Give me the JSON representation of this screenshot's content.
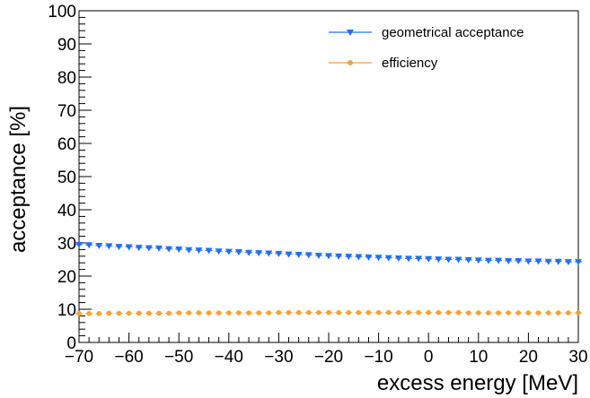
{
  "chart_data": {
    "type": "scatter",
    "xlabel": "excess energy [MeV]",
    "ylabel": "acceptance [%]",
    "xlim": [
      -70,
      30
    ],
    "ylim": [
      0,
      100
    ],
    "x_ticks": [
      -70,
      -60,
      -50,
      -40,
      -30,
      -20,
      -10,
      0,
      10,
      20,
      30
    ],
    "y_ticks": [
      0,
      10,
      20,
      30,
      40,
      50,
      60,
      70,
      80,
      90,
      100
    ],
    "x_tick_labels": [
      "−70",
      "−60",
      "−50",
      "−40",
      "−30",
      "−20",
      "−10",
      "0",
      "10",
      "20",
      "30"
    ],
    "y_tick_labels": [
      "0",
      "10",
      "20",
      "30",
      "40",
      "50",
      "60",
      "70",
      "80",
      "90",
      "100"
    ],
    "grid": false,
    "legend_position": "top-right",
    "series": [
      {
        "name": "geometrical acceptance",
        "marker": "triangle-down",
        "color": "#1f6fff",
        "x": [
          -70,
          -68,
          -66,
          -64,
          -62,
          -60,
          -58,
          -56,
          -54,
          -52,
          -50,
          -48,
          -46,
          -44,
          -42,
          -40,
          -38,
          -36,
          -34,
          -32,
          -30,
          -28,
          -26,
          -24,
          -22,
          -20,
          -18,
          -16,
          -14,
          -12,
          -10,
          -8,
          -6,
          -4,
          -2,
          0,
          2,
          4,
          6,
          8,
          10,
          12,
          14,
          16,
          18,
          20,
          22,
          24,
          26,
          28,
          30
        ],
        "y": [
          29.5,
          29.4,
          29.2,
          29.1,
          28.9,
          28.8,
          28.6,
          28.5,
          28.4,
          28.2,
          28.1,
          27.9,
          27.8,
          27.7,
          27.5,
          27.4,
          27.3,
          27.1,
          27.0,
          26.9,
          26.8,
          26.6,
          26.5,
          26.4,
          26.2,
          26.1,
          26.0,
          25.9,
          25.8,
          25.7,
          25.6,
          25.5,
          25.4,
          25.3,
          25.3,
          25.2,
          25.1,
          25.0,
          25.0,
          24.9,
          24.8,
          24.7,
          24.7,
          24.6,
          24.6,
          24.5,
          24.5,
          24.4,
          24.4,
          24.3,
          24.3
        ]
      },
      {
        "name": "efficiency",
        "marker": "circle",
        "color": "#f5a23c",
        "x": [
          -70,
          -68,
          -66,
          -64,
          -62,
          -60,
          -58,
          -56,
          -54,
          -52,
          -50,
          -48,
          -46,
          -44,
          -42,
          -40,
          -38,
          -36,
          -34,
          -32,
          -30,
          -28,
          -26,
          -24,
          -22,
          -20,
          -18,
          -16,
          -14,
          -12,
          -10,
          -8,
          -6,
          -4,
          -2,
          0,
          2,
          4,
          6,
          8,
          10,
          12,
          14,
          16,
          18,
          20,
          22,
          24,
          26,
          28,
          30
        ],
        "y": [
          8.7,
          8.7,
          8.7,
          8.8,
          8.8,
          8.8,
          8.8,
          8.8,
          8.8,
          8.8,
          8.9,
          8.9,
          8.9,
          8.9,
          8.9,
          8.9,
          8.9,
          8.9,
          8.9,
          8.9,
          9.0,
          9.0,
          9.0,
          9.0,
          9.0,
          9.0,
          9.0,
          9.0,
          9.0,
          9.0,
          9.0,
          9.0,
          9.0,
          9.0,
          9.0,
          9.0,
          9.0,
          9.0,
          9.0,
          8.9,
          8.9,
          8.9,
          8.9,
          8.9,
          8.9,
          8.9,
          8.9,
          8.9,
          8.9,
          8.9,
          8.9
        ]
      }
    ]
  }
}
